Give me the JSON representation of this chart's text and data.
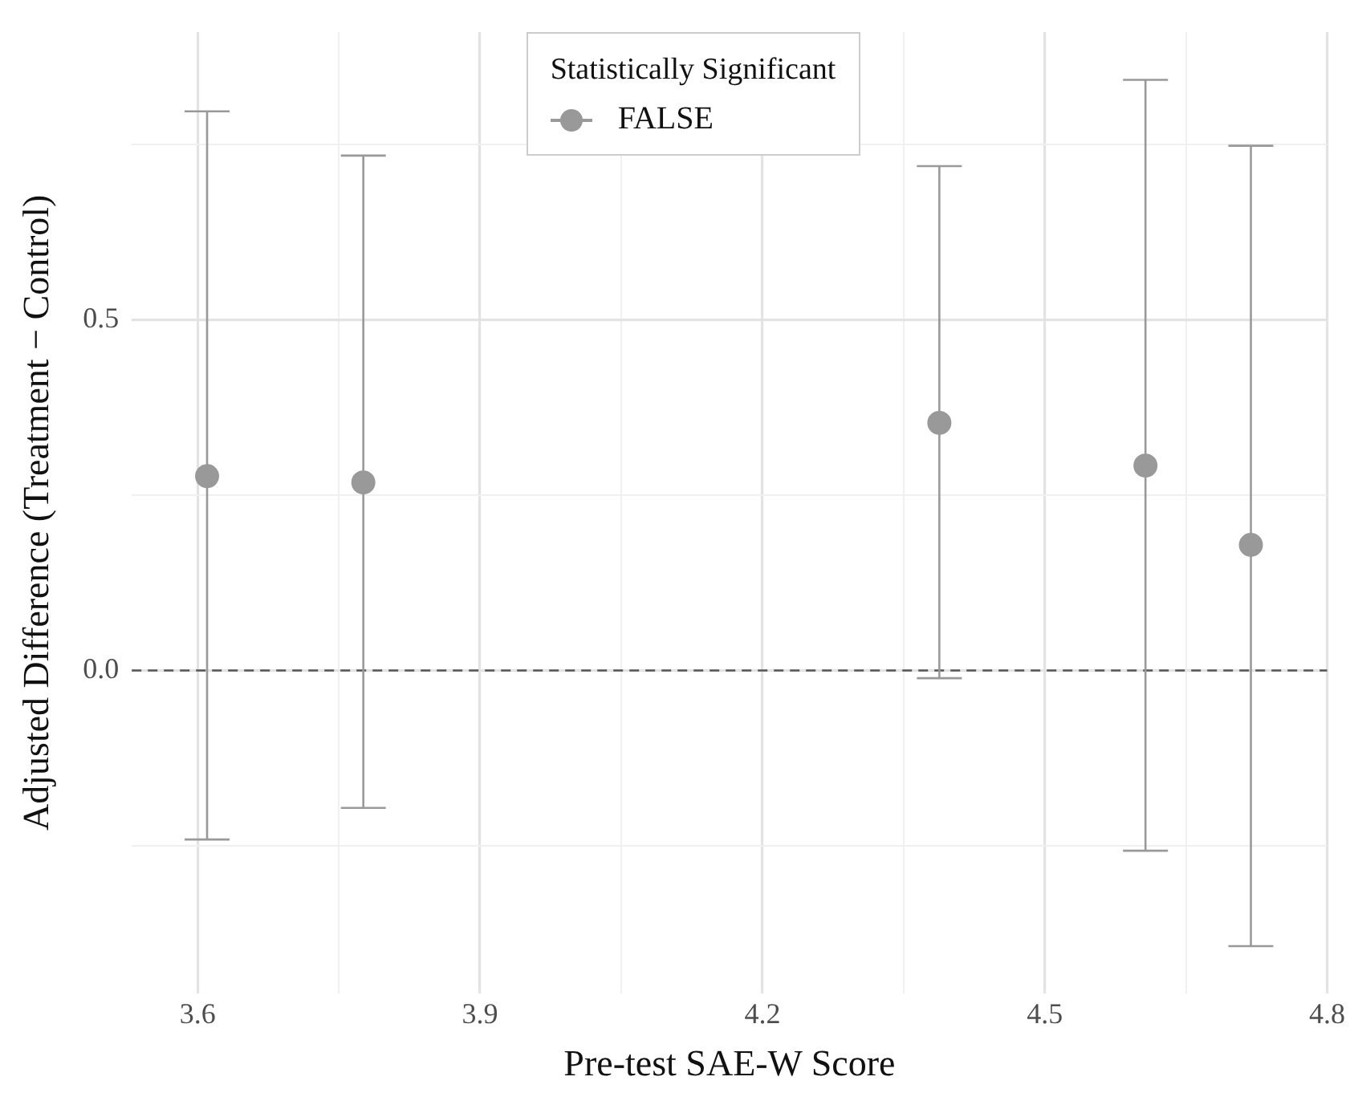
{
  "chart_data": {
    "type": "scatter",
    "xlabel": "Pre-test SAE-W Score",
    "ylabel": "Adjusted Difference (Treatment − Control)",
    "legend_title": "Statistically Significant",
    "legend": "top",
    "grid": true,
    "marker": "circle",
    "x": [
      3.61,
      3.776,
      4.388,
      4.607,
      4.719
    ],
    "series": [
      {
        "name": "FALSE",
        "color": "#999999",
        "values": [
          0.277,
          0.268,
          0.353,
          0.292,
          0.179
        ],
        "errors": [
          [
            -0.241,
            0.797
          ],
          [
            -0.196,
            0.734
          ],
          [
            -0.011,
            0.719
          ],
          [
            -0.257,
            0.842
          ],
          [
            -0.393,
            0.748
          ]
        ]
      }
    ],
    "xlim": [
      3.53,
      4.8
    ],
    "xticks": [
      3.6,
      {
        "value": 3.75,
        "label": null
      },
      3.9,
      {
        "value": 4.05,
        "label": null
      },
      4.2,
      {
        "value": 4.35,
        "label": null
      },
      4.5,
      {
        "value": 4.65,
        "label": null
      },
      4.8
    ],
    "ylim": [
      -0.46,
      0.91
    ],
    "yticks": [
      {
        "value": -0.25,
        "label": null
      },
      {
        "value": 0,
        "label": "0.0"
      },
      {
        "value": 0.25,
        "label": null
      },
      0.5,
      {
        "value": 0.75,
        "label": null
      }
    ],
    "ref_lines": [
      {
        "axis": "y",
        "value": 0,
        "label": null,
        "color": "#555555",
        "line_style": "dashed"
      }
    ]
  }
}
